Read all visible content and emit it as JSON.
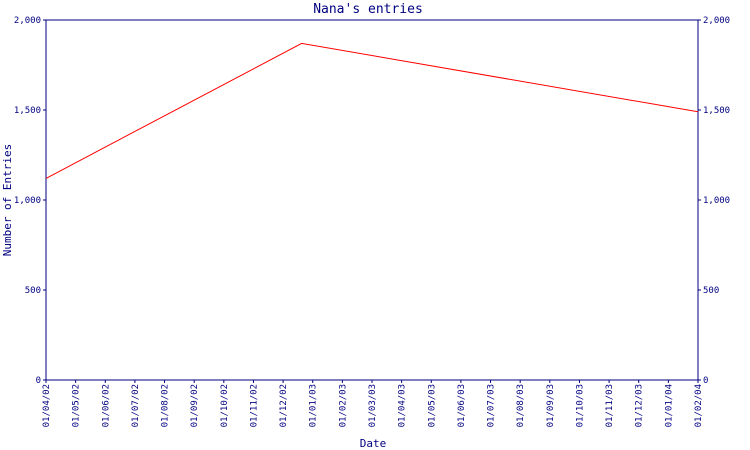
{
  "chart_data": {
    "type": "line",
    "title": "Nana's entries",
    "xlabel": "Date",
    "ylabel": "Number of Entries",
    "ylim": [
      0,
      2000
    ],
    "y_ticks": [
      0,
      500,
      1000,
      1500,
      2000
    ],
    "y_tick_labels": [
      "0",
      "500",
      "1,000",
      "1,500",
      "2,000"
    ],
    "x_tick_labels": [
      "01/04/02",
      "01/05/02",
      "01/06/02",
      "01/07/02",
      "01/08/02",
      "01/09/02",
      "01/10/02",
      "01/11/02",
      "01/12/02",
      "01/01/03",
      "01/02/03",
      "01/03/03",
      "01/04/03",
      "01/05/03",
      "01/06/03",
      "01/07/03",
      "01/08/03",
      "01/09/03",
      "01/10/03",
      "01/11/03",
      "01/12/03",
      "01/01/04",
      "01/02/04"
    ],
    "xlim": [
      "2002-04-01",
      "2004-02-01"
    ],
    "grid": false,
    "legend": "none",
    "series": [
      {
        "color": "#ff0000",
        "points": [
          {
            "x": "2002-04-01",
            "y": 1120
          },
          {
            "x": "2002-12-20",
            "y": 1870
          },
          {
            "x": "2004-02-01",
            "y": 1490
          }
        ]
      }
    ],
    "colors": {
      "axis": "#000080",
      "text": "#000080",
      "line": "#ff0000"
    }
  }
}
